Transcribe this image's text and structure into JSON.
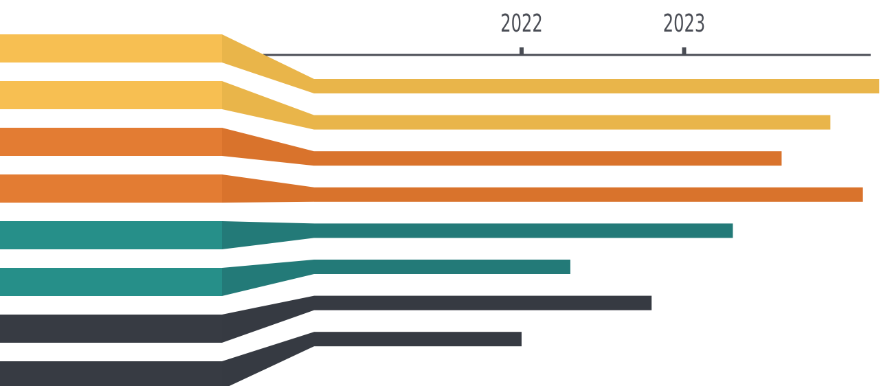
{
  "chart_data": {
    "type": "bar",
    "orientation": "horizontal",
    "x_axis": {
      "position": "top",
      "ticks": [
        {
          "label": "2022",
          "value": 2022
        },
        {
          "label": "2023",
          "value": 2023
        }
      ]
    },
    "grid": false,
    "legend": "none",
    "bars": [
      {
        "value": 2024.2,
        "color": "#e9b54a",
        "label_color": "#f7bf52"
      },
      {
        "value": 2023.9,
        "color": "#e9b54a",
        "label_color": "#f7bf52"
      },
      {
        "value": 2023.6,
        "color": "#d9732c",
        "label_color": "#e37c33"
      },
      {
        "value": 2024.1,
        "color": "#d9732c",
        "label_color": "#e37c33"
      },
      {
        "value": 2023.3,
        "color": "#237a78",
        "label_color": "#268f89"
      },
      {
        "value": 2022.3,
        "color": "#237a78",
        "label_color": "#268f89"
      },
      {
        "value": 2022.8,
        "color": "#363a42",
        "label_color": "#373b43"
      },
      {
        "value": 2022.0,
        "color": "#363a42",
        "label_color": "#373b43"
      }
    ]
  }
}
